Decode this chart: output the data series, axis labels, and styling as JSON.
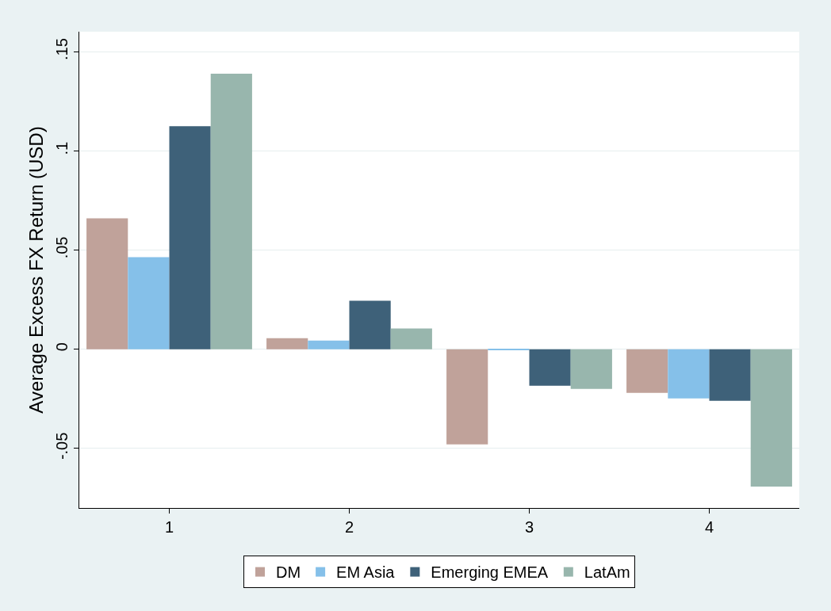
{
  "chart_data": {
    "type": "bar",
    "ylabel": "Average Excess FX Return (USD)",
    "categories": [
      "1",
      "2",
      "3",
      "4"
    ],
    "series": [
      {
        "name": "DM",
        "color": "#c0a29a",
        "values": [
          0.066,
          0.0056,
          -0.048,
          -0.022
        ]
      },
      {
        "name": "EM Asia",
        "color": "#85c0e9",
        "values": [
          0.0464,
          0.0044,
          -0.0004,
          -0.0248
        ]
      },
      {
        "name": "Emerging EMEA",
        "color": "#3e6179",
        "values": [
          0.1124,
          0.0244,
          -0.0184,
          -0.026
        ]
      },
      {
        "name": "LatAm",
        "color": "#98b6ad",
        "values": [
          0.1388,
          0.0104,
          -0.02,
          -0.0692
        ]
      }
    ],
    "ylim": [
      -0.08,
      0.16
    ],
    "yticks": [
      {
        "value": -0.05,
        "label": "-.05"
      },
      0,
      {
        "value": 0.05,
        "label": ".05"
      },
      {
        "value": 0.1,
        "label": ".1"
      },
      {
        "value": 0.15,
        "label": ".15"
      }
    ],
    "grid": "y",
    "legend": "bottom"
  }
}
